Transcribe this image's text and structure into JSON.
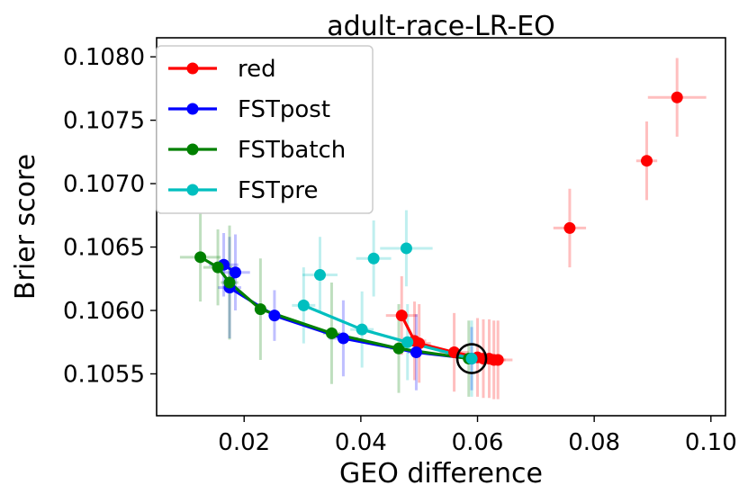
{
  "chart_data": {
    "type": "scatter",
    "title": "adult-race-LR-EO",
    "xlabel": "GEO difference",
    "ylabel": "Brier score",
    "xlim": [
      0.005,
      0.1025
    ],
    "ylim": [
      0.10517,
      0.10815
    ],
    "xticks": [
      0.02,
      0.04,
      0.06,
      0.08,
      0.1
    ],
    "xtick_labels": [
      "0.02",
      "0.04",
      "0.06",
      "0.08",
      "0.10"
    ],
    "yticks": [
      0.1055,
      0.106,
      0.1065,
      0.107,
      0.1075,
      0.108
    ],
    "ytick_labels": [
      "0.1055",
      "0.1060",
      "0.1065",
      "0.1070",
      "0.1075",
      "0.1080"
    ],
    "grid": false,
    "legend_position": "upper-left",
    "highlight_point": [
      0.059,
      0.10562
    ],
    "series": [
      {
        "name": "red",
        "color": "#ff0000",
        "points": [
          {
            "x": 0.0942,
            "y": 0.10768,
            "xerr": 0.005,
            "yerr": 0.00031
          },
          {
            "x": 0.089,
            "y": 0.10718,
            "xerr": 0.0018,
            "yerr": 0.00031
          },
          {
            "x": 0.0758,
            "y": 0.10665,
            "xerr": 0.0028,
            "yerr": 0.00031
          },
          {
            "x": 0.047,
            "y": 0.10596,
            "xerr": 0.0027,
            "yerr": 0.00031
          },
          {
            "x": 0.0492,
            "y": 0.10576,
            "xerr": 0.002,
            "yerr": 0.00031
          },
          {
            "x": 0.05,
            "y": 0.10574,
            "xerr": 0.002,
            "yerr": 0.00031
          },
          {
            "x": 0.056,
            "y": 0.10567,
            "xerr": 0.0025,
            "yerr": 0.00031
          },
          {
            "x": 0.06,
            "y": 0.10563,
            "xerr": 0.002,
            "yerr": 0.00031
          },
          {
            "x": 0.061,
            "y": 0.10562,
            "xerr": 0.002,
            "yerr": 0.00031
          },
          {
            "x": 0.062,
            "y": 0.10562,
            "xerr": 0.002,
            "yerr": 0.00031
          },
          {
            "x": 0.0628,
            "y": 0.10561,
            "xerr": 0.002,
            "yerr": 0.00031
          },
          {
            "x": 0.0635,
            "y": 0.10561,
            "xerr": 0.0025,
            "yerr": 0.00031
          }
        ],
        "line_path": [
          [
            0.047,
            0.10596
          ],
          [
            0.0492,
            0.10576
          ],
          [
            0.05,
            0.10574
          ],
          [
            0.056,
            0.10567
          ],
          [
            0.06,
            0.10563
          ],
          [
            0.061,
            0.10562
          ],
          [
            0.062,
            0.10562
          ],
          [
            0.0628,
            0.10561
          ],
          [
            0.0635,
            0.10561
          ]
        ]
      },
      {
        "name": "FSTpost",
        "color": "#0000ff",
        "points": [
          {
            "x": 0.0165,
            "y": 0.10636,
            "xerr": 0.0025,
            "yerr": 0.00025
          },
          {
            "x": 0.0185,
            "y": 0.1063,
            "xerr": 0.0025,
            "yerr": 0.0003
          },
          {
            "x": 0.0175,
            "y": 0.10618,
            "xerr": 0.002,
            "yerr": 0.0004
          },
          {
            "x": 0.0252,
            "y": 0.10596,
            "xerr": 0.001,
            "yerr": 0.0002
          },
          {
            "x": 0.037,
            "y": 0.10578,
            "xerr": 0.0025,
            "yerr": 0.0003
          },
          {
            "x": 0.0495,
            "y": 0.10567,
            "xerr": 0.0015,
            "yerr": 0.0003
          },
          {
            "x": 0.059,
            "y": 0.10562,
            "xerr": 0.001,
            "yerr": 0.00025
          }
        ],
        "line_path": [
          [
            0.0165,
            0.10636
          ],
          [
            0.0185,
            0.1063
          ],
          [
            0.0175,
            0.10618
          ],
          [
            0.0252,
            0.10596
          ],
          [
            0.037,
            0.10578
          ],
          [
            0.0495,
            0.10567
          ],
          [
            0.059,
            0.10562
          ]
        ]
      },
      {
        "name": "FSTbatch",
        "color": "#008000",
        "points": [
          {
            "x": 0.0125,
            "y": 0.10642,
            "xerr": 0.0035,
            "yerr": 0.00035
          },
          {
            "x": 0.0155,
            "y": 0.10634,
            "xerr": 0.0025,
            "yerr": 0.0003
          },
          {
            "x": 0.0175,
            "y": 0.10622,
            "xerr": 0.0015,
            "yerr": 0.00045
          },
          {
            "x": 0.0228,
            "y": 0.10601,
            "xerr": 0.001,
            "yerr": 0.0004
          },
          {
            "x": 0.035,
            "y": 0.10582,
            "xerr": 0.0015,
            "yerr": 0.0004
          },
          {
            "x": 0.0465,
            "y": 0.1057,
            "xerr": 0.0015,
            "yerr": 0.00035
          },
          {
            "x": 0.0585,
            "y": 0.10562,
            "xerr": 0.001,
            "yerr": 0.0003
          }
        ],
        "line_path": [
          [
            0.0125,
            0.10642
          ],
          [
            0.0155,
            0.10634
          ],
          [
            0.0175,
            0.10622
          ],
          [
            0.0228,
            0.10601
          ],
          [
            0.035,
            0.10582
          ],
          [
            0.0465,
            0.1057
          ],
          [
            0.0585,
            0.10562
          ]
        ]
      },
      {
        "name": "FSTpre",
        "color": "#00bfbf",
        "points": [
          {
            "x": 0.0478,
            "y": 0.10649,
            "xerr": 0.0045,
            "yerr": 0.0003
          },
          {
            "x": 0.0422,
            "y": 0.10641,
            "xerr": 0.003,
            "yerr": 0.0003
          },
          {
            "x": 0.033,
            "y": 0.10628,
            "xerr": 0.003,
            "yerr": 0.0003
          },
          {
            "x": 0.0302,
            "y": 0.10604,
            "xerr": 0.002,
            "yerr": 0.0003
          },
          {
            "x": 0.0402,
            "y": 0.10585,
            "xerr": 0.002,
            "yerr": 0.0003
          },
          {
            "x": 0.048,
            "y": 0.10575,
            "xerr": 0.0015,
            "yerr": 0.0003
          },
          {
            "x": 0.059,
            "y": 0.10562,
            "xerr": 0.0005,
            "yerr": 0.0003
          }
        ],
        "line_path": [
          [
            0.0302,
            0.10604
          ],
          [
            0.0402,
            0.10585
          ],
          [
            0.048,
            0.10575
          ],
          [
            0.059,
            0.10562
          ]
        ]
      }
    ]
  }
}
